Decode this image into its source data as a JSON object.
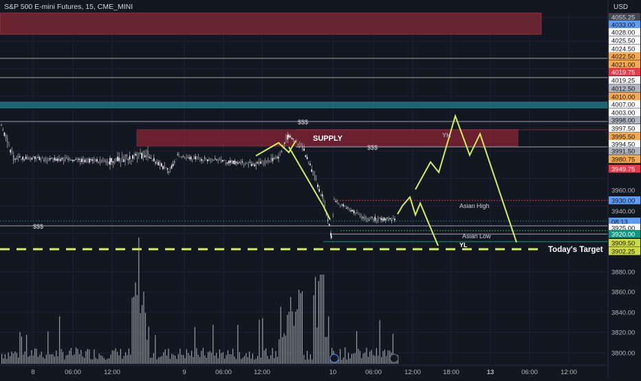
{
  "chart_data": {
    "type": "candlestick",
    "title": "S&P 500 E-mini Futures, 15, CME_MINI",
    "currency": "USD",
    "y_axis_ticks": [
      3800,
      3820,
      3840,
      3860,
      3880,
      3940,
      3960
    ],
    "price_labels": [
      {
        "value": "4055.25",
        "color": "#434651",
        "text_color": "#d1d4dc"
      },
      {
        "value": "4033.00",
        "color": "#5b9cf6",
        "text_color": "#131722"
      },
      {
        "value": "4028.00",
        "color": "#ffffff",
        "text_color": "#131722"
      },
      {
        "value": "4025.50",
        "color": "#ffffff",
        "text_color": "#131722"
      },
      {
        "value": "4024.50",
        "color": "#ffffff",
        "text_color": "#131722"
      },
      {
        "value": "4022.50",
        "color": "#f7a94c",
        "text_color": "#131722"
      },
      {
        "value": "4021.00",
        "color": "#f7a94c",
        "text_color": "#131722"
      },
      {
        "value": "4019.75",
        "color": "#f23645",
        "text_color": "#ffffff"
      },
      {
        "value": "4019.25",
        "color": "#ffffff",
        "text_color": "#131722"
      },
      {
        "value": "4012.50",
        "color": "#b2b5be",
        "text_color": "#131722"
      },
      {
        "value": "4010.00",
        "color": "#f7a94c",
        "text_color": "#131722"
      },
      {
        "value": "4007.00",
        "color": "#ffffff",
        "text_color": "#131722"
      },
      {
        "value": "4003.00",
        "color": "#ffffff",
        "text_color": "#131722"
      },
      {
        "value": "3998.00",
        "color": "#b2b5be",
        "text_color": "#131722"
      },
      {
        "value": "3997.50",
        "color": "#ffffff",
        "text_color": "#131722"
      },
      {
        "value": "3995.50",
        "color": "#f7a94c",
        "text_color": "#131722"
      },
      {
        "value": "3994.50",
        "color": "#ffffff",
        "text_color": "#131722"
      },
      {
        "value": "3991.50",
        "color": "#b2b5be",
        "text_color": "#131722"
      },
      {
        "value": "3980.75",
        "color": "#f7a94c",
        "text_color": "#131722"
      },
      {
        "value": "3949.75",
        "color": "#f23645",
        "text_color": "#ffffff"
      },
      {
        "value": "3930.00",
        "color": "#5b9cf6",
        "text_color": "#131722"
      },
      {
        "value": "08:13",
        "color": "#5b9cf6",
        "text_color": "#131722"
      },
      {
        "value": "3925.00",
        "color": "#ffffff",
        "text_color": "#131722"
      },
      {
        "value": "3920.00",
        "color": "#089981",
        "text_color": "#ffffff"
      },
      {
        "value": "3909.50",
        "color": "#cddc39",
        "text_color": "#131722"
      },
      {
        "value": "3902.25",
        "color": "#cddc39",
        "text_color": "#131722"
      }
    ],
    "x_axis_ticks": [
      "8",
      "06:00",
      "12:00",
      "9",
      "06:00",
      "12:00",
      "10",
      "06:00",
      "12:00",
      "18:00",
      "13",
      "06:00",
      "12:00"
    ],
    "annotations": {
      "supply": "SUPPLY",
      "liq_top": "$$$",
      "liq_mid": "$$$",
      "liq_left": "$$$",
      "yh": "YH",
      "yl": "YL",
      "asian_high": "Asian High",
      "asian_low": "Asian Low",
      "target": "Today's Target"
    },
    "series": [
      {
        "name": "price",
        "price_range": [
          3915,
          4003
        ],
        "trend": "range then sharp drop then partial recovery"
      },
      {
        "name": "volume",
        "trend": "spikes at session opens"
      }
    ],
    "projection_color": "#d4ef5c",
    "supply_zone_color": "#b2283a",
    "top_zone_color": "#7a2733",
    "teal_zone_color": "#1f6f7a"
  }
}
